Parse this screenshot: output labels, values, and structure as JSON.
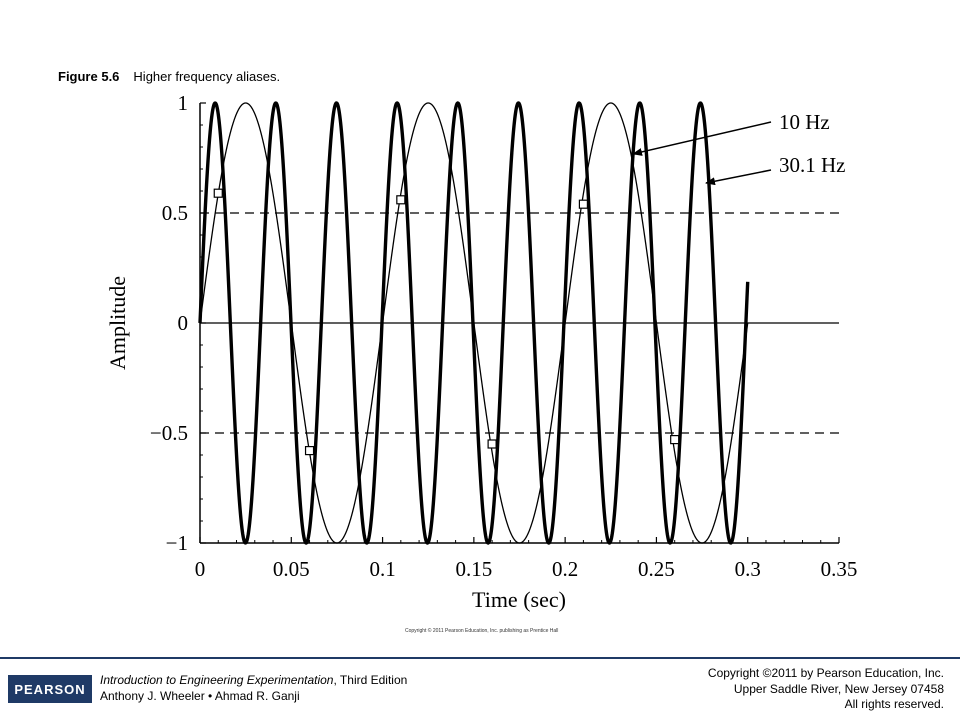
{
  "caption": {
    "label": "Figure 5.6",
    "text": "Higher frequency aliases."
  },
  "chart_data": {
    "type": "line",
    "title": "",
    "xlabel": "Time (sec)",
    "ylabel": "Amplitude",
    "xlim": [
      0,
      0.35
    ],
    "ylim": [
      -1,
      1
    ],
    "x_ticks": [
      "0",
      "0.05",
      "0.1",
      "0.15",
      "0.2",
      "0.25",
      "0.3",
      "0.35"
    ],
    "y_ticks": [
      "1",
      "0.5",
      "0",
      "−0.5",
      "−1"
    ],
    "reference_lines": [
      {
        "y": 0.5,
        "style": "dashed"
      },
      {
        "y": 0,
        "style": "solid"
      },
      {
        "y": -0.5,
        "style": "dashed"
      }
    ],
    "series": [
      {
        "name": "10 Hz",
        "function": "sin",
        "frequency_hz": 10,
        "x_range": [
          0,
          0.3
        ],
        "line": "thin"
      },
      {
        "name": "30.1 Hz",
        "function": "sin",
        "frequency_hz": 30.1,
        "x_range": [
          0,
          0.3
        ],
        "line": "thick"
      }
    ],
    "sample_points": [
      {
        "x": 0.01,
        "y": 0.59
      },
      {
        "x": 0.06,
        "y": -0.58
      },
      {
        "x": 0.11,
        "y": 0.56
      },
      {
        "x": 0.16,
        "y": -0.55
      },
      {
        "x": 0.21,
        "y": 0.54
      },
      {
        "x": 0.26,
        "y": -0.53
      }
    ],
    "grid": false,
    "legend": "callout labels with arrows at top-right"
  },
  "figure_copyright": "Copyright © 2011 Pearson Education, Inc. publishing as Prentice Hall",
  "footer": {
    "logo": "PEARSON",
    "book_title": "Introduction to Engineering Experimentation",
    "book_edition": ", Third Edition",
    "authors": "Anthony J. Wheeler • Ahmad R. Ganji",
    "copyright_lines": [
      "Copyright ©2011 by Pearson Education, Inc.",
      "Upper Saddle River, New Jersey 07458",
      "All rights reserved."
    ]
  }
}
